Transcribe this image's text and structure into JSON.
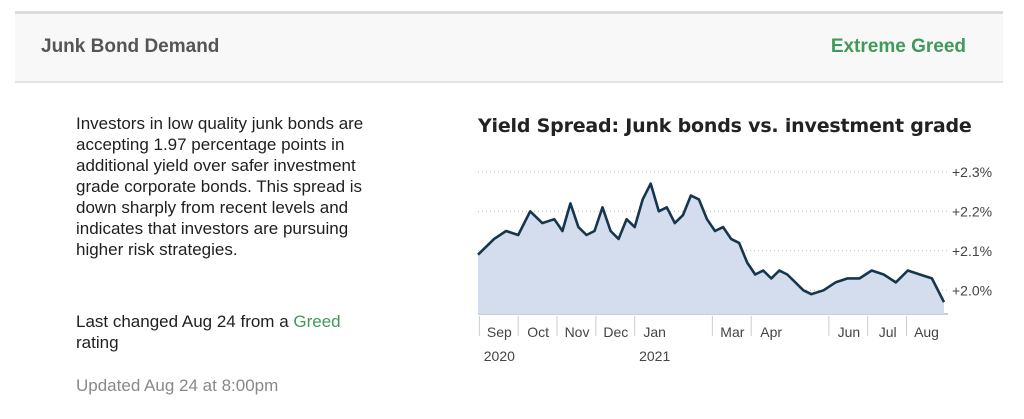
{
  "header": {
    "title": "Junk Bond Demand",
    "rating": "Extreme Greed",
    "rating_color": "#3f9a5a"
  },
  "description": "Investors in low quality junk bonds are accepting 1.97 percentage points in additional yield over safer investment grade corporate bonds. This spread is down sharply from recent levels and indicates that investors are pursuing higher risk strategies.",
  "last_changed": {
    "prefix": "Last changed Aug 24 from a",
    "rating_word": "Greed",
    "suffix": "rating"
  },
  "updated": "Updated Aug 24 at 8:00pm",
  "chart_data": {
    "type": "area",
    "title": "Yield Spread: Junk bonds vs. investment grade",
    "xlabel": "",
    "ylabel": "",
    "y_ticks": [
      2.3,
      2.2,
      2.1,
      2.0
    ],
    "y_tick_labels": [
      "+2.3%",
      "+2.2%",
      "+2.1%",
      "+2.0%"
    ],
    "ylim": [
      1.94,
      2.35
    ],
    "x_ticks": [
      "Sep",
      "Oct",
      "Nov",
      "Dec",
      "Jan",
      "Mar",
      "Apr",
      "Jun",
      "Jul",
      "Aug"
    ],
    "x_year_labels": [
      "2020",
      "2021"
    ],
    "grid": true,
    "line_color": "#16364f",
    "fill_color": "#d3dded",
    "x": [
      0,
      0.4,
      0.7,
      1.0,
      1.3,
      1.6,
      1.9,
      2.1,
      2.3,
      2.5,
      2.7,
      2.9,
      3.1,
      3.3,
      3.5,
      3.7,
      3.9,
      4.1,
      4.3,
      4.5,
      4.7,
      4.9,
      5.1,
      5.3,
      5.5,
      5.7,
      5.9,
      6.1,
      6.3,
      6.5,
      6.7,
      6.9,
      7.1,
      7.3,
      7.5,
      7.7,
      7.9,
      8.1,
      8.3,
      8.6,
      8.9,
      9.2,
      9.5,
      9.8,
      10.1,
      10.4,
      10.7,
      11.0,
      11.3,
      11.6
    ],
    "y": [
      2.09,
      2.13,
      2.15,
      2.14,
      2.2,
      2.17,
      2.18,
      2.15,
      2.22,
      2.16,
      2.14,
      2.15,
      2.21,
      2.15,
      2.13,
      2.18,
      2.16,
      2.23,
      2.27,
      2.2,
      2.21,
      2.17,
      2.19,
      2.24,
      2.23,
      2.18,
      2.15,
      2.16,
      2.13,
      2.12,
      2.07,
      2.04,
      2.05,
      2.03,
      2.05,
      2.04,
      2.02,
      2.0,
      1.99,
      2.0,
      2.02,
      2.03,
      2.03,
      2.05,
      2.04,
      2.02,
      2.05,
      2.04,
      2.03,
      1.97
    ]
  }
}
